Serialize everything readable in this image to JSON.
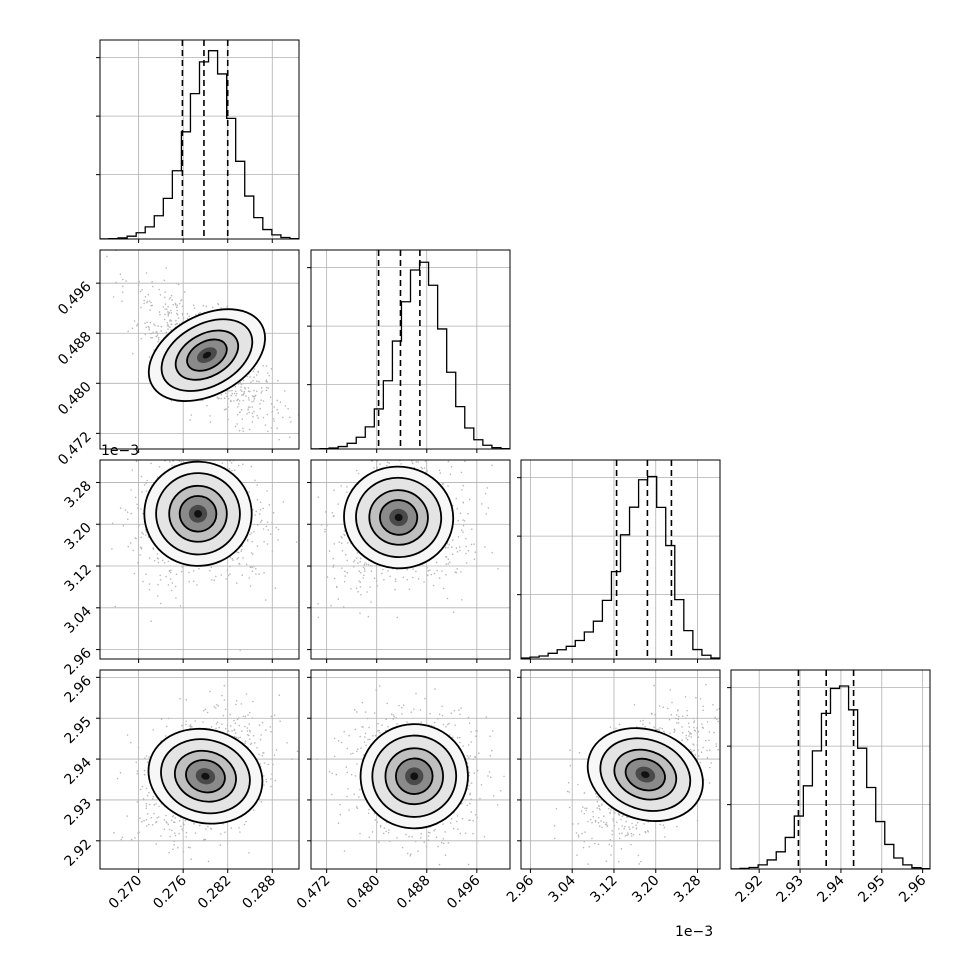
{
  "chart_data": {
    "type": "corner",
    "title": "",
    "grid": true,
    "parameters": [
      {
        "ticks": [
          "0.270",
          "0.276",
          "0.282",
          "0.288"
        ],
        "tick_values": [
          0.27,
          0.276,
          0.282,
          0.288
        ],
        "range": [
          0.2648,
          0.2916
        ],
        "offset_label": "",
        "hist_bins": [
          0.0006,
          0.002,
          0.006,
          0.015,
          0.033,
          0.064,
          0.123,
          0.215,
          0.361,
          0.567,
          0.769,
          0.937,
          0.996,
          0.873,
          0.638,
          0.411,
          0.227,
          0.113,
          0.05,
          0.022,
          0.008,
          0.002
        ],
        "quantiles": [
          0.2759,
          0.2788,
          0.282
        ]
      },
      {
        "ticks": [
          "0.472",
          "0.480",
          "0.488",
          "0.496"
        ],
        "tick_values": [
          0.472,
          0.48,
          0.488,
          0.496
        ],
        "range": [
          0.4695,
          0.5013
        ],
        "offset_label": "",
        "hist_bins": [
          0.0005,
          0.002,
          0.005,
          0.013,
          0.03,
          0.062,
          0.117,
          0.212,
          0.361,
          0.571,
          0.779,
          0.947,
          0.988,
          0.866,
          0.635,
          0.406,
          0.224,
          0.111,
          0.049,
          0.02,
          0.007,
          0.002
        ],
        "quantiles": [
          0.4803,
          0.4838,
          0.4869
        ]
      },
      {
        "ticks": [
          "2.96",
          "3.04",
          "3.12",
          "3.20",
          "3.28"
        ],
        "tick_values": [
          2.96,
          3.04,
          3.12,
          3.2,
          3.28
        ],
        "range": [
          2.942,
          3.323
        ],
        "offset_label": "1e−3",
        "hist_bins": [
          0.005,
          0.01,
          0.016,
          0.03,
          0.049,
          0.067,
          0.098,
          0.143,
          0.2,
          0.31,
          0.462,
          0.657,
          0.803,
          0.948,
          0.965,
          0.802,
          0.6,
          0.314,
          0.15,
          0.05,
          0.02,
          0.005
        ],
        "quantiles": [
          3.125,
          3.184,
          3.23
        ]
      },
      {
        "ticks": [
          "2.92",
          "2.93",
          "2.94",
          "2.95",
          "2.96"
        ],
        "tick_values": [
          2.92,
          2.93,
          2.94,
          2.95,
          2.96
        ],
        "range": [
          2.9131,
          2.9618
        ],
        "offset_label": "",
        "hist_bins": [
          0.0008,
          0.003,
          0.008,
          0.022,
          0.048,
          0.091,
          0.167,
          0.28,
          0.44,
          0.625,
          0.823,
          0.955,
          0.968,
          0.842,
          0.639,
          0.431,
          0.251,
          0.13,
          0.058,
          0.022,
          0.007,
          0.002
        ],
        "quantiles": [
          2.9296,
          2.9364,
          2.9431
        ]
      }
    ],
    "joint_peaks": {
      "1-0": [
        0.2792,
        0.4845
      ],
      "2-0": [
        0.278,
        3.22
      ],
      "2-1": [
        0.4835,
        3.213
      ],
      "3-0": [
        0.279,
        2.9358
      ],
      "3-1": [
        0.486,
        2.9358
      ],
      "3-2": [
        3.18,
        2.9362
      ]
    }
  }
}
